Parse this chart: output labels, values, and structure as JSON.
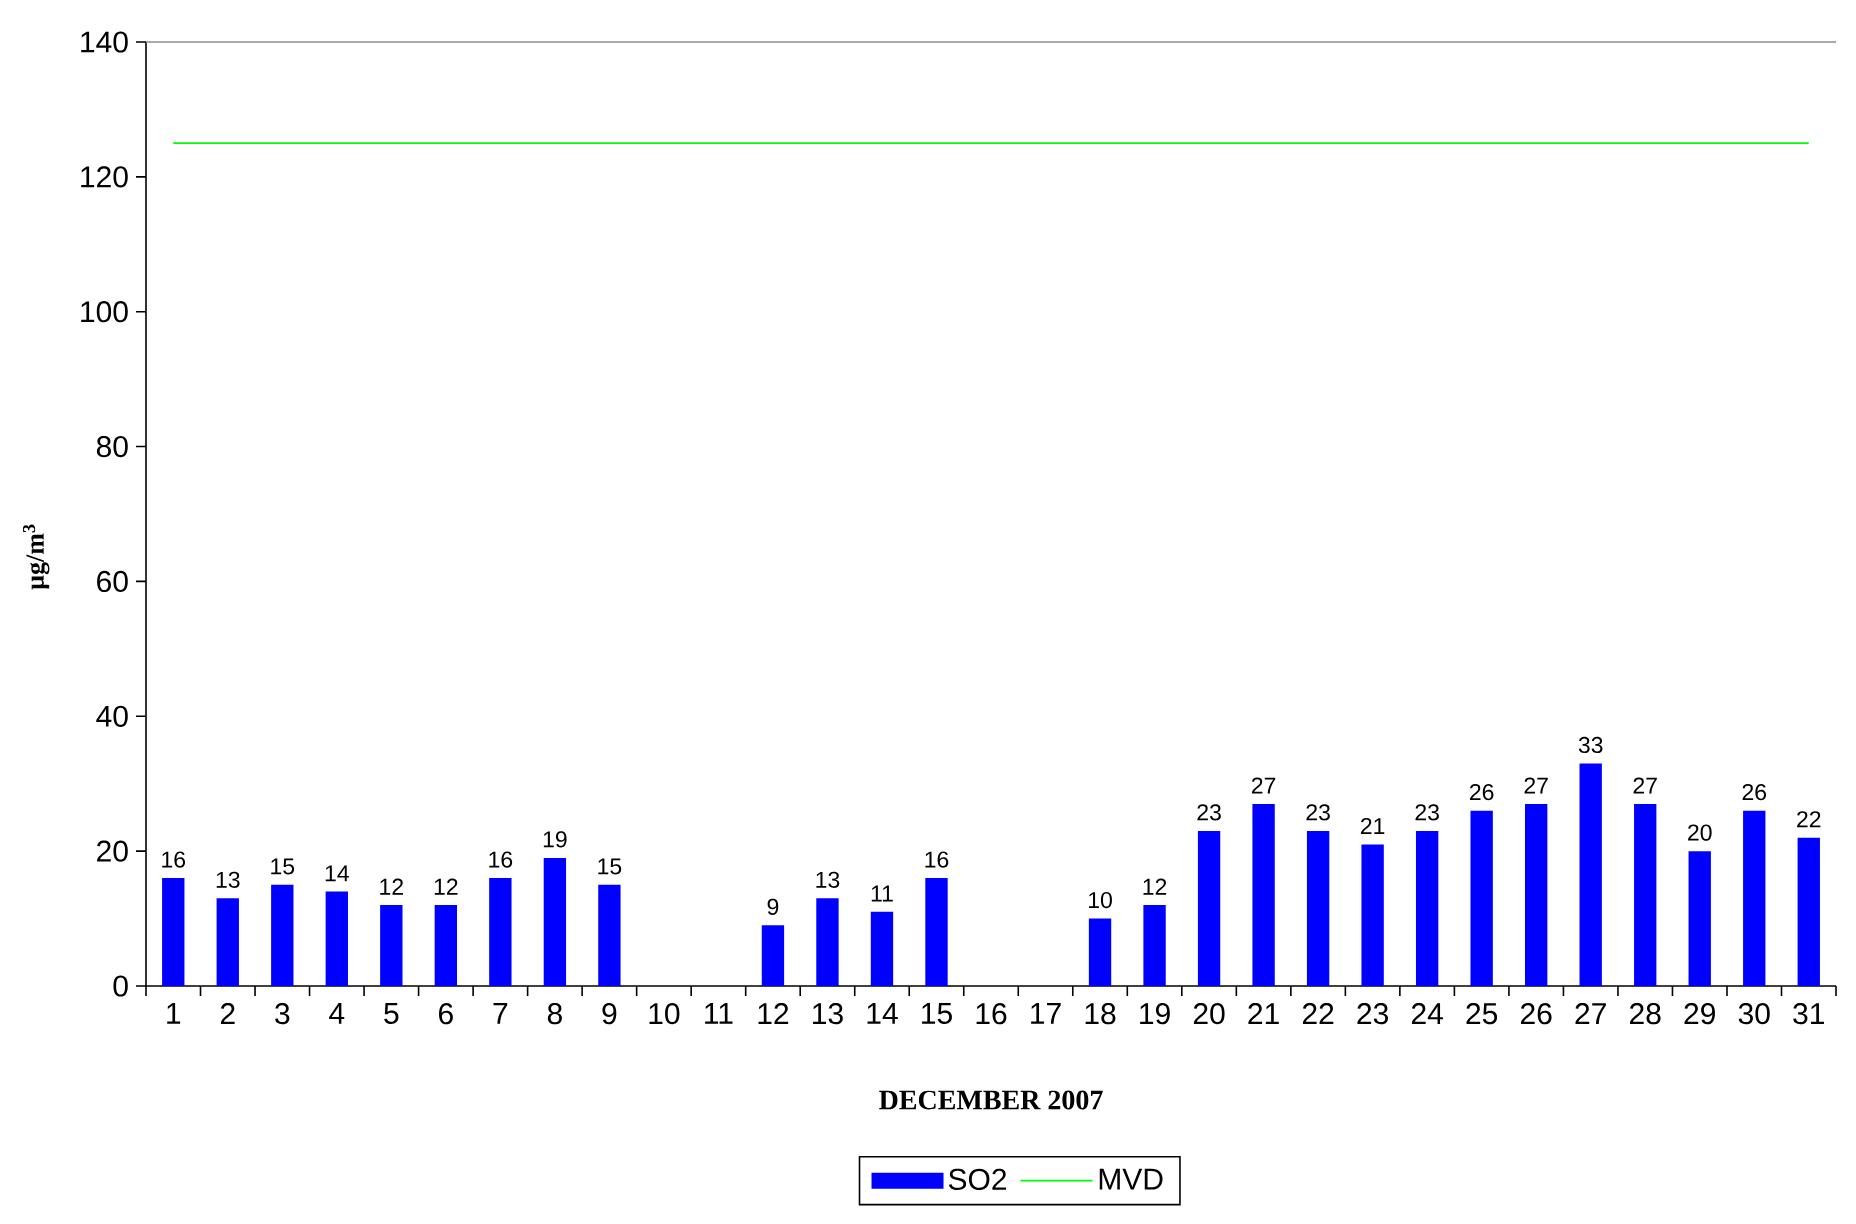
{
  "chart_data": {
    "type": "bar",
    "xlabel": "DECEMBER 2007",
    "ylabel": "µg/m$^{3}$",
    "categories": [
      "1",
      "2",
      "3",
      "4",
      "5",
      "6",
      "7",
      "8",
      "9",
      "10",
      "11",
      "12",
      "13",
      "14",
      "15",
      "16",
      "17",
      "18",
      "19",
      "20",
      "21",
      "22",
      "23",
      "24",
      "25",
      "26",
      "27",
      "28",
      "29",
      "30",
      "31"
    ],
    "series": [
      {
        "name": "SO2",
        "color": "#0000ff",
        "values": [
          16,
          13,
          15,
          14,
          12,
          12,
          16,
          19,
          15,
          null,
          null,
          9,
          13,
          11,
          16,
          null,
          null,
          10,
          12,
          23,
          27,
          23,
          21,
          23,
          26,
          27,
          33,
          27,
          20,
          26,
          22
        ],
        "value_labels": [
          "16",
          "13",
          "15",
          "14",
          "12",
          "12",
          "16",
          "19",
          "15",
          null,
          null,
          "9",
          "13",
          "11",
          "16",
          null,
          null,
          "10",
          "12",
          "23",
          "27",
          "23",
          "21",
          "23",
          "26",
          "27",
          "33",
          "27",
          "20",
          "26",
          "22"
        ]
      },
      {
        "name": "MVD",
        "type": "line",
        "color": "#00ff00",
        "values": [
          125,
          125,
          125,
          125,
          125,
          125,
          125,
          125,
          125,
          125,
          125,
          125,
          125,
          125,
          125,
          125,
          125,
          125,
          125,
          125,
          125,
          125,
          125,
          125,
          125,
          125,
          125,
          125,
          125,
          125,
          125
        ]
      }
    ],
    "ylim": [
      0,
      140
    ],
    "yticks": [
      0,
      20,
      40,
      60,
      80,
      100,
      120,
      140
    ],
    "legend": "bottom"
  }
}
